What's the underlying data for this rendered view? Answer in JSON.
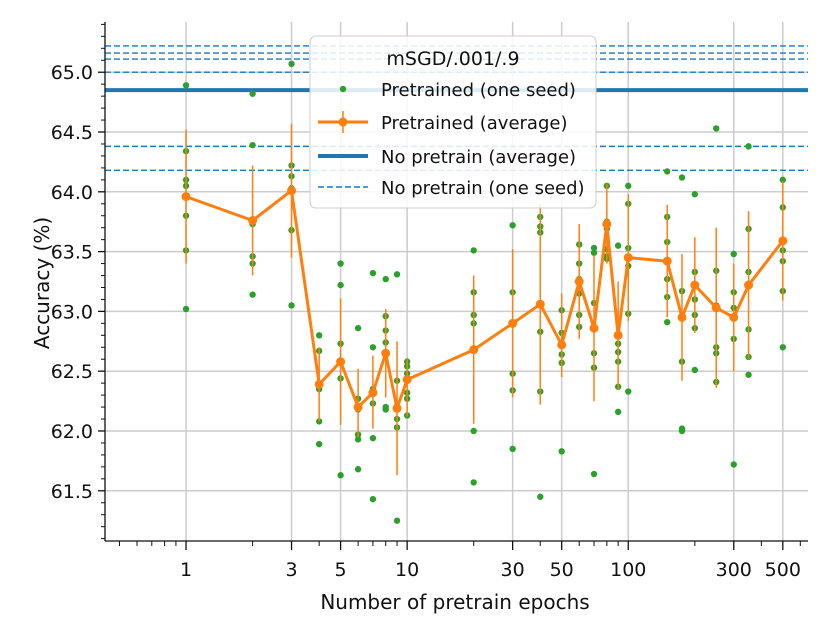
{
  "chart_data": {
    "type": "scatter",
    "title": "",
    "xlabel": "Number of pretrain epochs",
    "ylabel": "Accuracy (%)",
    "xscale": "log",
    "xlim": [
      0.43,
      650
    ],
    "ylim": [
      61.08,
      65.42
    ],
    "x_ticks": [
      1,
      3,
      5,
      10,
      30,
      50,
      100,
      300,
      500
    ],
    "x_tick_labels": [
      "1",
      "3",
      "5",
      "10",
      "30",
      "50",
      "100",
      "300",
      "500"
    ],
    "y_ticks": [
      61.5,
      62.0,
      62.5,
      63.0,
      63.5,
      64.0,
      64.5,
      65.0
    ],
    "y_tick_labels": [
      "61.5",
      "62.0",
      "62.5",
      "63.0",
      "63.5",
      "64.0",
      "64.5",
      "65.0"
    ],
    "grid": true,
    "legend": {
      "title": "mSGD/.001/.9",
      "location": "top-center",
      "entries": [
        {
          "label": "Pretrained (one seed)",
          "kind": "dot"
        },
        {
          "label": "Pretrained (average)",
          "kind": "errorbar-line"
        },
        {
          "label": "No pretrain (average)",
          "kind": "thick-line"
        },
        {
          "label": "No pretrain (one seed)",
          "kind": "dashed-line"
        }
      ]
    },
    "colors": {
      "one_seed": "#2ca02c",
      "average": "#ff7f0e",
      "no_pretrain": "#1f77b4",
      "grid": "#cccccc"
    },
    "no_pretrain_average": 64.85,
    "no_pretrain_seeds": [
      65.22,
      65.16,
      65.11,
      65.0,
      64.85,
      64.38,
      64.18
    ],
    "average_series": [
      {
        "x": 1,
        "y": 63.96,
        "lo": 63.4,
        "hi": 64.52
      },
      {
        "x": 2,
        "y": 63.76,
        "lo": 63.3,
        "hi": 64.22
      },
      {
        "x": 3,
        "y": 64.01,
        "lo": 63.45,
        "hi": 64.57
      },
      {
        "x": 4,
        "y": 62.39,
        "lo": 62.08,
        "hi": 62.7
      },
      {
        "x": 5,
        "y": 62.58,
        "lo": 62.05,
        "hi": 63.11
      },
      {
        "x": 6,
        "y": 62.2,
        "lo": 61.95,
        "hi": 62.52
      },
      {
        "x": 7,
        "y": 62.32,
        "lo": 62.02,
        "hi": 62.63
      },
      {
        "x": 8,
        "y": 62.65,
        "lo": 62.28,
        "hi": 63.02
      },
      {
        "x": 9,
        "y": 62.19,
        "lo": 61.63,
        "hi": 62.75
      },
      {
        "x": 10,
        "y": 62.43,
        "lo": 62.12,
        "hi": 62.6
      },
      {
        "x": 20,
        "y": 62.68,
        "lo": 62.06,
        "hi": 63.3
      },
      {
        "x": 30,
        "y": 62.9,
        "lo": 62.28,
        "hi": 63.52
      },
      {
        "x": 40,
        "y": 63.06,
        "lo": 62.22,
        "hi": 63.9
      },
      {
        "x": 50,
        "y": 62.72,
        "lo": 62.45,
        "hi": 63.15
      },
      {
        "x": 60,
        "y": 63.25,
        "lo": 62.77,
        "hi": 63.73
      },
      {
        "x": 70,
        "y": 62.86,
        "lo": 62.25,
        "hi": 63.47
      },
      {
        "x": 80,
        "y": 63.73,
        "lo": 63.4,
        "hi": 64.07
      },
      {
        "x": 90,
        "y": 62.8,
        "lo": 62.35,
        "hi": 63.25
      },
      {
        "x": 100,
        "y": 63.45,
        "lo": 62.92,
        "hi": 63.98
      },
      {
        "x": 150,
        "y": 63.42,
        "lo": 62.95,
        "hi": 63.89
      },
      {
        "x": 175,
        "y": 62.95,
        "lo": 62.42,
        "hi": 63.48
      },
      {
        "x": 200,
        "y": 63.22,
        "lo": 62.82,
        "hi": 63.62
      },
      {
        "x": 250,
        "y": 63.03,
        "lo": 62.36,
        "hi": 63.7
      },
      {
        "x": 300,
        "y": 62.95,
        "lo": 62.5,
        "hi": 63.4
      },
      {
        "x": 350,
        "y": 63.22,
        "lo": 62.6,
        "hi": 63.84
      },
      {
        "x": 500,
        "y": 63.59,
        "lo": 63.09,
        "hi": 64.09
      }
    ],
    "seed_points": [
      {
        "x": 1,
        "y": 64.89
      },
      {
        "x": 1,
        "y": 64.34
      },
      {
        "x": 1,
        "y": 64.1
      },
      {
        "x": 1,
        "y": 64.05
      },
      {
        "x": 1,
        "y": 63.8
      },
      {
        "x": 1,
        "y": 63.51
      },
      {
        "x": 1,
        "y": 63.02
      },
      {
        "x": 2,
        "y": 64.82
      },
      {
        "x": 2,
        "y": 64.39
      },
      {
        "x": 2,
        "y": 63.73
      },
      {
        "x": 2,
        "y": 63.46
      },
      {
        "x": 2,
        "y": 63.4
      },
      {
        "x": 2,
        "y": 63.14
      },
      {
        "x": 3,
        "y": 65.07
      },
      {
        "x": 3,
        "y": 64.22
      },
      {
        "x": 3,
        "y": 64.13
      },
      {
        "x": 3,
        "y": 64.03
      },
      {
        "x": 3,
        "y": 63.68
      },
      {
        "x": 3,
        "y": 63.05
      },
      {
        "x": 4,
        "y": 62.8
      },
      {
        "x": 4,
        "y": 62.67
      },
      {
        "x": 4,
        "y": 62.4
      },
      {
        "x": 4,
        "y": 62.35
      },
      {
        "x": 4,
        "y": 62.08
      },
      {
        "x": 4,
        "y": 61.89
      },
      {
        "x": 5,
        "y": 63.4
      },
      {
        "x": 5,
        "y": 63.22
      },
      {
        "x": 5,
        "y": 62.73
      },
      {
        "x": 5,
        "y": 62.58
      },
      {
        "x": 5,
        "y": 62.44
      },
      {
        "x": 5,
        "y": 61.63
      },
      {
        "x": 6,
        "y": 62.86
      },
      {
        "x": 6,
        "y": 62.27
      },
      {
        "x": 6,
        "y": 62.18
      },
      {
        "x": 6,
        "y": 61.97
      },
      {
        "x": 6,
        "y": 61.93
      },
      {
        "x": 6,
        "y": 61.68
      },
      {
        "x": 7,
        "y": 63.32
      },
      {
        "x": 7,
        "y": 62.7
      },
      {
        "x": 7,
        "y": 62.35
      },
      {
        "x": 7,
        "y": 62.23
      },
      {
        "x": 7,
        "y": 61.94
      },
      {
        "x": 7,
        "y": 61.43
      },
      {
        "x": 8,
        "y": 63.27
      },
      {
        "x": 8,
        "y": 62.96
      },
      {
        "x": 8,
        "y": 62.84
      },
      {
        "x": 8,
        "y": 62.74
      },
      {
        "x": 8,
        "y": 62.2
      },
      {
        "x": 8,
        "y": 62.18
      },
      {
        "x": 9,
        "y": 63.31
      },
      {
        "x": 9,
        "y": 62.42
      },
      {
        "x": 9,
        "y": 62.21
      },
      {
        "x": 9,
        "y": 62.1
      },
      {
        "x": 9,
        "y": 62.03
      },
      {
        "x": 9,
        "y": 61.25
      },
      {
        "x": 10,
        "y": 62.58
      },
      {
        "x": 10,
        "y": 62.54
      },
      {
        "x": 10,
        "y": 62.48
      },
      {
        "x": 10,
        "y": 62.32
      },
      {
        "x": 10,
        "y": 62.27
      },
      {
        "x": 10,
        "y": 62.13
      },
      {
        "x": 20,
        "y": 63.51
      },
      {
        "x": 20,
        "y": 63.16
      },
      {
        "x": 20,
        "y": 62.97
      },
      {
        "x": 20,
        "y": 62.9
      },
      {
        "x": 20,
        "y": 62.0
      },
      {
        "x": 20,
        "y": 61.57
      },
      {
        "x": 30,
        "y": 63.72
      },
      {
        "x": 30,
        "y": 63.16
      },
      {
        "x": 30,
        "y": 62.89
      },
      {
        "x": 30,
        "y": 62.48
      },
      {
        "x": 30,
        "y": 62.34
      },
      {
        "x": 30,
        "y": 61.85
      },
      {
        "x": 40,
        "y": 63.79
      },
      {
        "x": 40,
        "y": 63.71
      },
      {
        "x": 40,
        "y": 63.66
      },
      {
        "x": 40,
        "y": 62.83
      },
      {
        "x": 40,
        "y": 62.33
      },
      {
        "x": 40,
        "y": 61.45
      },
      {
        "x": 50,
        "y": 63.01
      },
      {
        "x": 50,
        "y": 62.82
      },
      {
        "x": 50,
        "y": 62.72
      },
      {
        "x": 50,
        "y": 62.64
      },
      {
        "x": 50,
        "y": 62.57
      },
      {
        "x": 50,
        "y": 61.83
      },
      {
        "x": 60,
        "y": 63.56
      },
      {
        "x": 60,
        "y": 63.4
      },
      {
        "x": 60,
        "y": 63.27
      },
      {
        "x": 60,
        "y": 63.15
      },
      {
        "x": 60,
        "y": 62.97
      },
      {
        "x": 60,
        "y": 62.87
      },
      {
        "x": 70,
        "y": 63.53
      },
      {
        "x": 70,
        "y": 63.49
      },
      {
        "x": 70,
        "y": 63.07
      },
      {
        "x": 70,
        "y": 62.65
      },
      {
        "x": 70,
        "y": 62.53
      },
      {
        "x": 70,
        "y": 61.64
      },
      {
        "x": 80,
        "y": 64.05
      },
      {
        "x": 80,
        "y": 63.46
      },
      {
        "x": 80,
        "y": 63.44
      },
      {
        "x": 80,
        "y": 63.52
      },
      {
        "x": 80,
        "y": 63.69
      },
      {
        "x": 80,
        "y": 63.75
      },
      {
        "x": 90,
        "y": 63.55
      },
      {
        "x": 90,
        "y": 62.73
      },
      {
        "x": 90,
        "y": 62.66
      },
      {
        "x": 90,
        "y": 62.58
      },
      {
        "x": 90,
        "y": 62.37
      },
      {
        "x": 90,
        "y": 62.16
      },
      {
        "x": 100,
        "y": 64.05
      },
      {
        "x": 100,
        "y": 63.9
      },
      {
        "x": 100,
        "y": 63.53
      },
      {
        "x": 100,
        "y": 63.38
      },
      {
        "x": 100,
        "y": 62.98
      },
      {
        "x": 100,
        "y": 62.33
      },
      {
        "x": 150,
        "y": 64.17
      },
      {
        "x": 150,
        "y": 63.79
      },
      {
        "x": 150,
        "y": 63.58
      },
      {
        "x": 150,
        "y": 63.27
      },
      {
        "x": 150,
        "y": 63.12
      },
      {
        "x": 150,
        "y": 62.91
      },
      {
        "x": 175,
        "y": 64.12
      },
      {
        "x": 175,
        "y": 63.17
      },
      {
        "x": 175,
        "y": 62.94
      },
      {
        "x": 175,
        "y": 62.58
      },
      {
        "x": 175,
        "y": 62.02
      },
      {
        "x": 175,
        "y": 62.0
      },
      {
        "x": 200,
        "y": 63.98
      },
      {
        "x": 200,
        "y": 63.33
      },
      {
        "x": 200,
        "y": 63.1
      },
      {
        "x": 200,
        "y": 62.97
      },
      {
        "x": 200,
        "y": 62.86
      },
      {
        "x": 200,
        "y": 62.51
      },
      {
        "x": 250,
        "y": 64.53
      },
      {
        "x": 250,
        "y": 63.34
      },
      {
        "x": 250,
        "y": 63.05
      },
      {
        "x": 250,
        "y": 62.7
      },
      {
        "x": 250,
        "y": 62.65
      },
      {
        "x": 250,
        "y": 62.41
      },
      {
        "x": 300,
        "y": 63.48
      },
      {
        "x": 300,
        "y": 63.16
      },
      {
        "x": 300,
        "y": 63.03
      },
      {
        "x": 300,
        "y": 62.95
      },
      {
        "x": 300,
        "y": 62.77
      },
      {
        "x": 300,
        "y": 61.72
      },
      {
        "x": 350,
        "y": 64.38
      },
      {
        "x": 350,
        "y": 63.69
      },
      {
        "x": 350,
        "y": 63.33
      },
      {
        "x": 350,
        "y": 62.85
      },
      {
        "x": 350,
        "y": 62.62
      },
      {
        "x": 350,
        "y": 62.47
      },
      {
        "x": 500,
        "y": 64.1
      },
      {
        "x": 500,
        "y": 63.87
      },
      {
        "x": 500,
        "y": 63.51
      },
      {
        "x": 500,
        "y": 63.42
      },
      {
        "x": 500,
        "y": 63.17
      },
      {
        "x": 500,
        "y": 62.7
      }
    ]
  }
}
